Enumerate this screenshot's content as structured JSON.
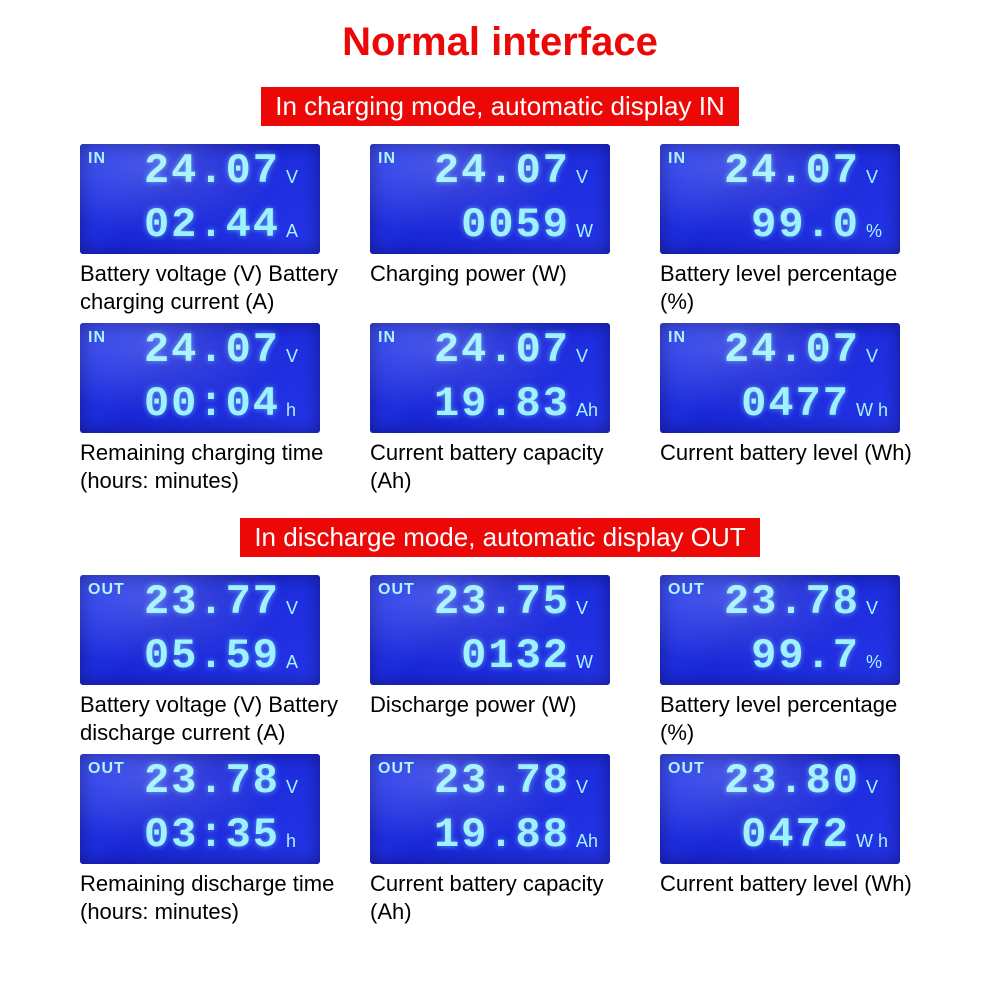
{
  "title": "Normal interface",
  "colors": {
    "title_color": "#ed0808",
    "banner_bg": "#ed0808",
    "banner_text": "#ffffff",
    "lcd_bg_from": "#2a3ff0",
    "lcd_bg_to": "#1a28d8",
    "lcd_text": "#9df2ff",
    "caption_color": "#000000",
    "page_bg": "#ffffff"
  },
  "typography": {
    "title_fontsize": 40,
    "banner_fontsize": 26,
    "digit_fontsize": 42,
    "caption_fontsize": 22
  },
  "layout": {
    "grid_cols": 3,
    "lcd_width": 240,
    "lcd_height": 110
  },
  "sections": [
    {
      "banner": "In charging mode, automatic display IN",
      "mode_label": "IN",
      "panels": [
        {
          "line1_value": "24.07",
          "line1_unit": "V",
          "line2_value": "02.44",
          "line2_unit": "A",
          "caption": "Battery voltage (V) Battery charging current (A)"
        },
        {
          "line1_value": "24.07",
          "line1_unit": "V",
          "line2_value": "0059",
          "line2_unit": "W",
          "caption": "Charging power (W)"
        },
        {
          "line1_value": "24.07",
          "line1_unit": "V",
          "line2_value": "99.0",
          "line2_unit": "%",
          "caption": "Battery level percentage (%)"
        },
        {
          "line1_value": "24.07",
          "line1_unit": "V",
          "line2_value": "00:04",
          "line2_unit": "h",
          "caption": "Remaining charging time (hours: minutes)"
        },
        {
          "line1_value": "24.07",
          "line1_unit": "V",
          "line2_value": "19.83",
          "line2_unit": "Ah",
          "caption": "Current battery capacity (Ah)"
        },
        {
          "line1_value": "24.07",
          "line1_unit": "V",
          "line2_value": "0477",
          "line2_unit": "W h",
          "caption": "Current battery level (Wh)"
        }
      ]
    },
    {
      "banner": "In discharge mode, automatic display OUT",
      "mode_label": "OUT",
      "panels": [
        {
          "line1_value": "23.77",
          "line1_unit": "V",
          "line2_value": "05.59",
          "line2_unit": "A",
          "caption": "Battery voltage (V) Battery discharge current (A)"
        },
        {
          "line1_value": "23.75",
          "line1_unit": "V",
          "line2_value": "0132",
          "line2_unit": "W",
          "caption": "Discharge power (W)"
        },
        {
          "line1_value": "23.78",
          "line1_unit": "V",
          "line2_value": "99.7",
          "line2_unit": "%",
          "caption": "Battery level percentage (%)"
        },
        {
          "line1_value": "23.78",
          "line1_unit": "V",
          "line2_value": "03:35",
          "line2_unit": "h",
          "caption": "Remaining discharge time (hours: minutes)"
        },
        {
          "line1_value": "23.78",
          "line1_unit": "V",
          "line2_value": "19.88",
          "line2_unit": "Ah",
          "caption": "Current battery capacity (Ah)"
        },
        {
          "line1_value": "23.80",
          "line1_unit": "V",
          "line2_value": "0472",
          "line2_unit": "W h",
          "caption": "Current battery level (Wh)"
        }
      ]
    }
  ]
}
